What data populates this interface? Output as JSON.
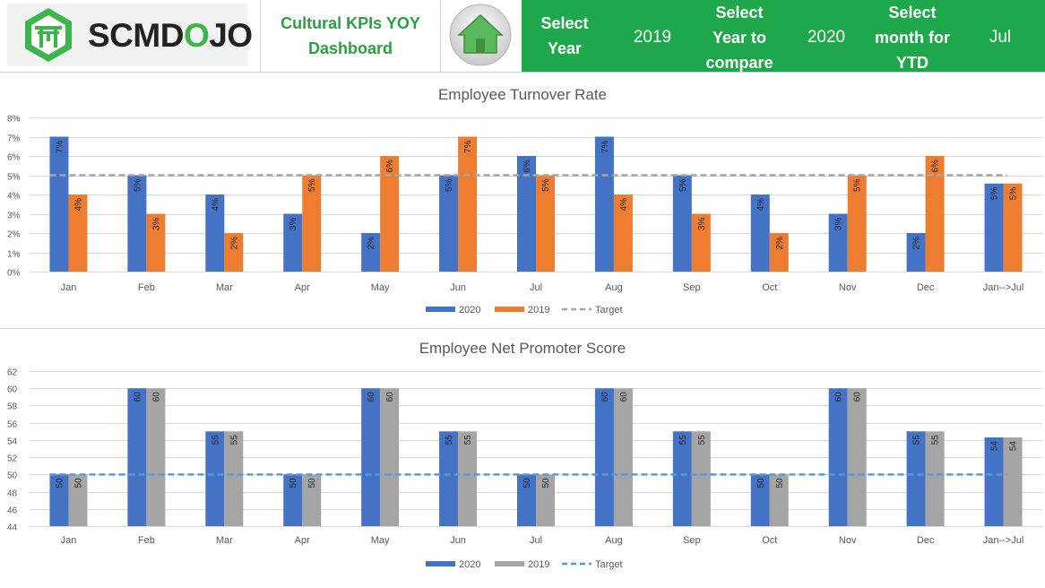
{
  "header": {
    "logo_text_a": "SCMD",
    "logo_text_o": "O",
    "logo_text_b": "JO",
    "title": "Cultural KPIs  YOY\nDashboard",
    "select_year_label": "Select\nYear",
    "select_year_value": "2019",
    "compare_label": "Select\nYear to\ncompare",
    "compare_value": "2020",
    "month_label": "Select\nmonth for\nYTD",
    "month_value": "Jul"
  },
  "colors": {
    "header_green": "#1fa84b",
    "title_green": "#2e9e45",
    "series_2020": "#4472c4",
    "series_2019_turnover": "#ed7d31",
    "series_2019_nps": "#a5a5a5",
    "target_turnover": "#a5a5a5",
    "target_nps": "#5b9bd5"
  },
  "chart_data": [
    {
      "type": "bar",
      "title": "Employee Turnover Rate",
      "categories": [
        "Jan",
        "Feb",
        "Mar",
        "Apr",
        "May",
        "Jun",
        "Jul",
        "Aug",
        "Sep",
        "Oct",
        "Nov",
        "Dec",
        "Jan-->Jul"
      ],
      "series": [
        {
          "name": "2020",
          "values": [
            7,
            5,
            4,
            3,
            2,
            5,
            6,
            7,
            5,
            4,
            3,
            2,
            4.57
          ],
          "labels": [
            "7%",
            "5%",
            "4%",
            "3%",
            "2%",
            "5%",
            "6%",
            "7%",
            "5%",
            "4%",
            "3%",
            "2%",
            "5%"
          ]
        },
        {
          "name": "2019",
          "values": [
            4,
            3,
            2,
            5,
            6,
            7,
            5,
            4,
            3,
            2,
            5,
            6,
            4.57
          ],
          "labels": [
            "4%",
            "3%",
            "2%",
            "5%",
            "6%",
            "7%",
            "5%",
            "4%",
            "3%",
            "2%",
            "5%",
            "6%",
            "5%"
          ]
        }
      ],
      "target": {
        "name": "Target",
        "value": 5
      },
      "yticks": [
        "0%",
        "1%",
        "2%",
        "3%",
        "4%",
        "5%",
        "6%",
        "7%",
        "8%"
      ],
      "ylim": [
        0,
        8
      ],
      "legend": "bottom"
    },
    {
      "type": "bar",
      "title": "Employee Net Promoter Score",
      "categories": [
        "Jan",
        "Feb",
        "Mar",
        "Apr",
        "May",
        "Jun",
        "Jul",
        "Aug",
        "Sep",
        "Oct",
        "Nov",
        "Dec",
        "Jan-->Jul"
      ],
      "series": [
        {
          "name": "2020",
          "values": [
            50,
            60,
            55,
            50,
            60,
            55,
            50,
            60,
            55,
            50,
            60,
            55,
            54.3
          ],
          "labels": [
            "50",
            "60",
            "55",
            "50",
            "60",
            "55",
            "50",
            "60",
            "55",
            "50",
            "60",
            "55",
            "54"
          ]
        },
        {
          "name": "2019",
          "values": [
            50,
            60,
            55,
            50,
            60,
            55,
            50,
            60,
            55,
            50,
            60,
            55,
            54.3
          ],
          "labels": [
            "50",
            "60",
            "55",
            "50",
            "60",
            "55",
            "50",
            "60",
            "55",
            "50",
            "60",
            "55",
            "54"
          ]
        }
      ],
      "target": {
        "name": "Target",
        "value": 50
      },
      "yticks": [
        "44",
        "46",
        "48",
        "50",
        "52",
        "54",
        "56",
        "58",
        "60",
        "62"
      ],
      "ylim": [
        44,
        62
      ],
      "legend": "bottom"
    }
  ]
}
